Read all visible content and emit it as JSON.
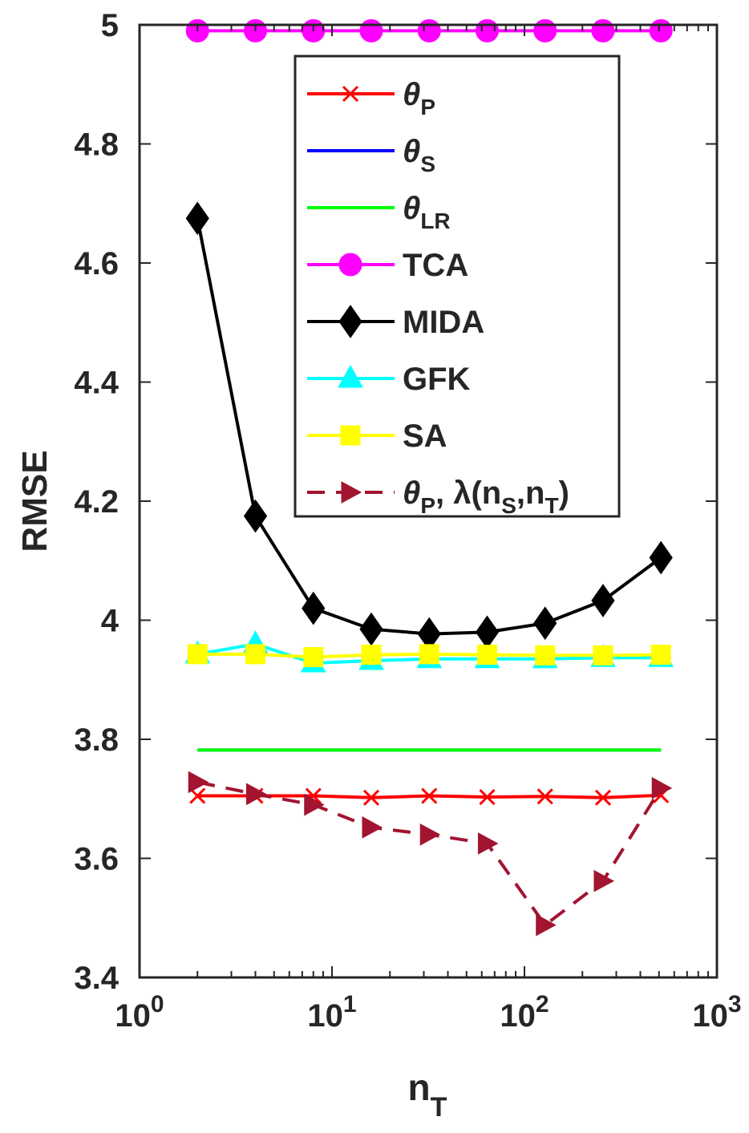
{
  "chart_data": {
    "type": "line",
    "title": "",
    "xlabel": "n",
    "xlabel_sub": "T",
    "ylabel": "RMSE",
    "xscale": "log",
    "xlim": [
      1,
      1000
    ],
    "ylim": [
      3.4,
      5.0
    ],
    "x_ticks": [
      {
        "base": "10",
        "exp": "0"
      },
      {
        "base": "10",
        "exp": "1"
      },
      {
        "base": "10",
        "exp": "2"
      },
      {
        "base": "10",
        "exp": "3"
      }
    ],
    "y_tick_values": [
      3.4,
      3.6,
      3.8,
      4.0,
      4.2,
      4.4,
      4.6,
      4.8,
      5.0
    ],
    "y_tick_labels": [
      "3.4",
      "3.6",
      "3.8",
      "4",
      "4.2",
      "4.4",
      "4.6",
      "4.8",
      "5"
    ],
    "x": [
      2,
      4,
      8,
      16,
      32,
      64,
      128,
      256,
      512
    ],
    "legend_position": "top-right",
    "series": [
      {
        "name": "θ",
        "sub": "P",
        "color": "#ff0000",
        "dash": "",
        "marker": "x",
        "values": [
          3.705,
          3.705,
          3.705,
          3.702,
          3.705,
          3.703,
          3.704,
          3.702,
          3.706
        ]
      },
      {
        "name": "θ",
        "sub": "S",
        "color": "#0000ff",
        "dash": "",
        "marker": "none",
        "values": [
          3.782,
          3.782,
          3.782,
          3.782,
          3.782,
          3.782,
          3.782,
          3.782,
          3.782
        ]
      },
      {
        "name": "θ",
        "sub": "LR",
        "color": "#00ff00",
        "dash": "",
        "marker": "none",
        "values": [
          3.782,
          3.782,
          3.782,
          3.782,
          3.782,
          3.782,
          3.782,
          3.782,
          3.782
        ]
      },
      {
        "name": "TCA",
        "sub": "",
        "color": "#ff00ff",
        "dash": "",
        "marker": "circle",
        "values": [
          4.99,
          4.99,
          4.99,
          4.99,
          4.99,
          4.99,
          4.99,
          4.99,
          4.99
        ]
      },
      {
        "name": "MIDA",
        "sub": "",
        "color": "#000000",
        "dash": "",
        "marker": "diamond",
        "values": [
          4.675,
          4.175,
          4.02,
          3.985,
          3.977,
          3.98,
          3.995,
          4.033,
          4.105
        ]
      },
      {
        "name": "GFK",
        "sub": "",
        "color": "#00ffff",
        "dash": "",
        "marker": "triangle",
        "values": [
          3.943,
          3.96,
          3.928,
          3.932,
          3.935,
          3.935,
          3.935,
          3.937,
          3.937
        ]
      },
      {
        "name": "SA",
        "sub": "",
        "color": "#ffff00",
        "dash": "",
        "marker": "square",
        "values": [
          3.943,
          3.943,
          3.938,
          3.942,
          3.943,
          3.942,
          3.941,
          3.941,
          3.942
        ]
      },
      {
        "name": "θ",
        "sub": "P",
        "suffix": ", λ(n",
        "suffix_sub1": "S",
        "suffix_mid": ",n",
        "suffix_sub2": "T",
        "suffix_end": ")",
        "color": "#a2142f",
        "dash": "22,14",
        "marker": "triangle-right",
        "values": [
          3.728,
          3.708,
          3.69,
          3.652,
          3.64,
          3.625,
          3.488,
          3.562,
          3.718
        ]
      }
    ]
  }
}
